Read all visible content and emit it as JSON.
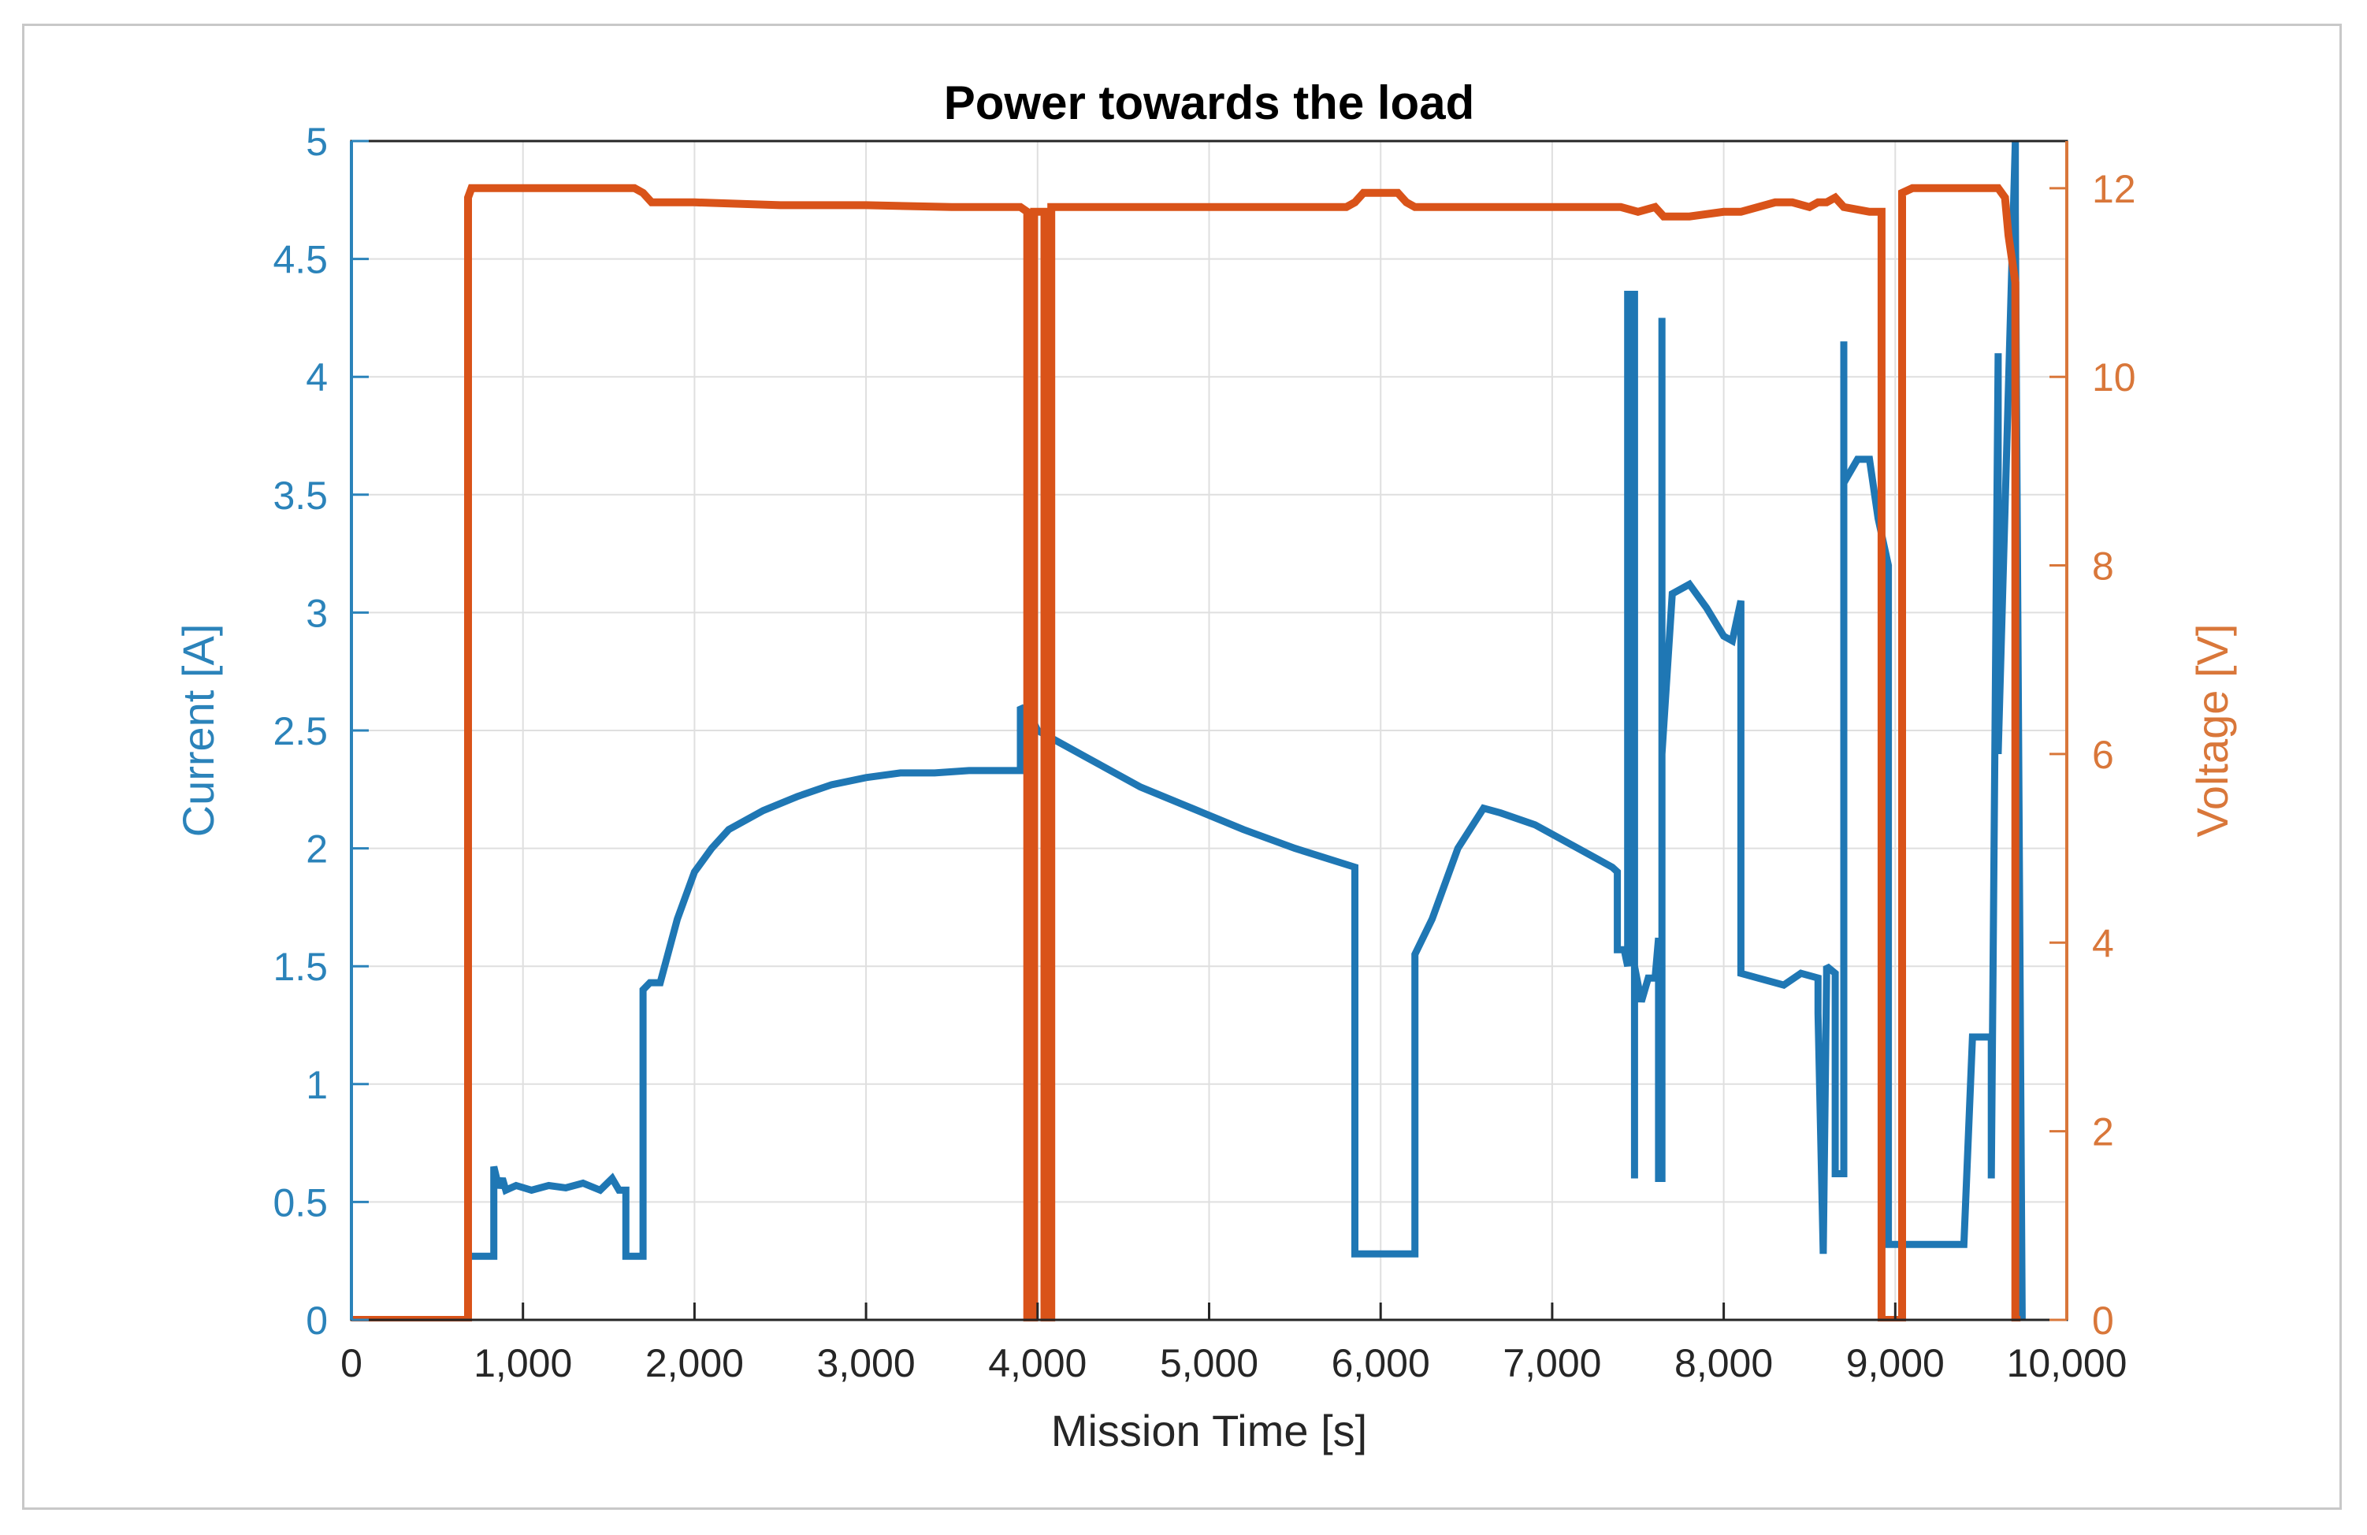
{
  "chart_data": {
    "type": "line",
    "title": "Power towards the load",
    "xlabel": "Mission Time [s]",
    "ylabel_left": "Current [A]",
    "ylabel_right": "Voltage [V]",
    "xlim": [
      0,
      10000
    ],
    "ylim_left": [
      0,
      5
    ],
    "ylim_right": [
      0,
      12.5
    ],
    "x_ticks": [
      0,
      1000,
      2000,
      3000,
      4000,
      5000,
      6000,
      7000,
      8000,
      9000,
      10000
    ],
    "x_tick_labels": [
      "0",
      "1,000",
      "2,000",
      "3,000",
      "4,000",
      "5,000",
      "6,000",
      "7,000",
      "8,000",
      "9,000",
      "10,000"
    ],
    "y_left_ticks": [
      0,
      0.5,
      1,
      1.5,
      2,
      2.5,
      3,
      3.5,
      4,
      4.5,
      5
    ],
    "y_left_tick_labels": [
      "0",
      "0.5",
      "1",
      "1.5",
      "2",
      "2.5",
      "3",
      "3.5",
      "4",
      "4.5",
      "5"
    ],
    "y_right_ticks": [
      0,
      2,
      4,
      6,
      8,
      10,
      12
    ],
    "y_right_tick_labels": [
      "0",
      "2",
      "4",
      "6",
      "8",
      "10",
      "12"
    ],
    "grid": true,
    "colors": {
      "current": "#1f77b4",
      "voltage": "#d95319",
      "left_axis": "#2b83ba",
      "right_axis": "#d9773a",
      "grid": "#dfdfdf",
      "axis_box": "#262626"
    },
    "series": [
      {
        "axis": "left",
        "x": [
          0,
          680,
          680,
          830,
          830,
          860,
          880,
          900,
          960,
          1050,
          1150,
          1250,
          1350,
          1450,
          1520,
          1560,
          1600,
          1600,
          1700,
          1700,
          1740,
          1800,
          1900,
          2000,
          2100,
          2200,
          2400,
          2600,
          2800,
          3000,
          3200,
          3400,
          3600,
          3900,
          3900,
          3960,
          4000,
          4100,
          4300,
          4600,
          4900,
          5200,
          5500,
          5850,
          5850,
          6000,
          6150,
          6200,
          6200,
          6300,
          6450,
          6600,
          6700,
          6900,
          7150,
          7350,
          7380,
          7380,
          7420,
          7440,
          7440,
          7480,
          7480,
          7480,
          7520,
          7560,
          7600,
          7620,
          7620,
          7640,
          7640,
          7640,
          7700,
          7800,
          7900,
          8000,
          8050,
          8100,
          8100,
          8200,
          8350,
          8450,
          8550,
          8550,
          8580,
          8600,
          8600,
          8650,
          8650,
          8700,
          8700,
          8700,
          8780,
          8850,
          8900,
          8960,
          8960,
          9100,
          9400,
          9400,
          9450,
          9520,
          9560,
          9560,
          9600,
          9600,
          9700,
          9700,
          9700,
          9740
        ],
        "y": [
          0,
          0,
          0.27,
          0.27,
          0.65,
          0.56,
          0.6,
          0.55,
          0.57,
          0.55,
          0.57,
          0.56,
          0.58,
          0.55,
          0.6,
          0.55,
          0.55,
          0.27,
          0.27,
          1.4,
          1.43,
          1.43,
          1.7,
          1.9,
          2.0,
          2.08,
          2.16,
          2.22,
          2.27,
          2.3,
          2.32,
          2.32,
          2.33,
          2.33,
          2.6,
          2.56,
          2.5,
          2.46,
          2.38,
          2.26,
          2.17,
          2.08,
          2.0,
          1.92,
          0.28,
          0.28,
          0.28,
          0.28,
          1.55,
          1.7,
          2.0,
          2.17,
          2.15,
          2.1,
          2.0,
          1.92,
          1.9,
          1.57,
          1.57,
          1.5,
          4.35,
          4.35,
          0.6,
          1.5,
          1.35,
          1.45,
          1.45,
          1.62,
          0.6,
          0.6,
          4.25,
          2.4,
          3.08,
          3.12,
          3.02,
          2.9,
          2.88,
          3.05,
          1.47,
          1.45,
          1.42,
          1.47,
          1.45,
          1.3,
          0.28,
          1.47,
          1.5,
          1.47,
          0.62,
          0.62,
          4.15,
          3.55,
          3.65,
          3.65,
          3.4,
          3.2,
          0.32,
          0.32,
          0.32,
          0.32,
          1.2,
          1.2,
          1.2,
          0.6,
          4.1,
          2.4,
          5.0,
          4.7,
          4.7,
          0.0
        ],
        "stroke_width": 9
      },
      {
        "axis": "right",
        "x": [
          0,
          680,
          680,
          700,
          760,
          900,
          1100,
          1300,
          1500,
          1650,
          1700,
          1750,
          2000,
          2500,
          3000,
          3500,
          3900,
          3940,
          3940,
          3980,
          3980,
          4040,
          4040,
          4080,
          4080,
          4300,
          4800,
          5300,
          5800,
          5850,
          5900,
          6100,
          6150,
          6200,
          6500,
          7000,
          7400,
          7500,
          7600,
          7650,
          7800,
          8000,
          8100,
          8200,
          8300,
          8400,
          8500,
          8550,
          8600,
          8650,
          8700,
          8850,
          8920,
          8920,
          8980,
          8980,
          9040,
          9040,
          9100,
          9300,
          9500,
          9600,
          9640,
          9660,
          9700,
          9700,
          9730
        ],
        "y": [
          0,
          0,
          11.9,
          12.0,
          12.0,
          12.0,
          12.0,
          12.0,
          12.0,
          12.0,
          11.95,
          11.85,
          11.85,
          11.82,
          11.82,
          11.8,
          11.8,
          11.75,
          0,
          0,
          11.75,
          11.75,
          0,
          0,
          11.8,
          11.8,
          11.8,
          11.8,
          11.8,
          11.85,
          11.95,
          11.95,
          11.85,
          11.8,
          11.8,
          11.8,
          11.8,
          11.75,
          11.8,
          11.7,
          11.7,
          11.75,
          11.75,
          11.8,
          11.85,
          11.85,
          11.8,
          11.85,
          11.85,
          11.9,
          11.8,
          11.75,
          11.75,
          0,
          0,
          0,
          0,
          11.95,
          12.0,
          12.0,
          12.0,
          12.0,
          11.9,
          11.5,
          11.0,
          0,
          0
        ],
        "stroke_width": 10
      }
    ]
  }
}
